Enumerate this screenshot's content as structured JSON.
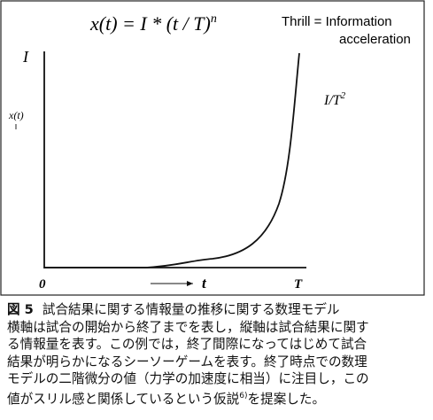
{
  "figure": {
    "formula": {
      "base": "x(t) = I * (t / T)",
      "exponent": "n"
    },
    "note": {
      "line1": "Thrill  = Information",
      "line2": "acceleration"
    },
    "y_label": "I",
    "y_series_label": "x(t)",
    "curve_label": {
      "base": "I/T",
      "exponent": "2"
    },
    "x_origin": "0",
    "x_label": "t",
    "x_end": "T"
  },
  "caption": {
    "label": "図 5",
    "title": "試合結果に関する情報量の推移に関する数理モデル",
    "lines": [
      "横軸は試合の開始から終了までを表し，縦軸は試合結果に関す",
      "る情報量を表す。この例では，終了間際になってはじめて試合",
      "結果が明らかになるシーソーゲームを表す。終了時点での数理",
      "モデルの二階微分の値（力学の加速度に相当）に注目し，この"
    ],
    "last": {
      "before": "値がスリル感と関係しているという仮説",
      "ref": "6)",
      "after": "を提案した。"
    }
  }
}
